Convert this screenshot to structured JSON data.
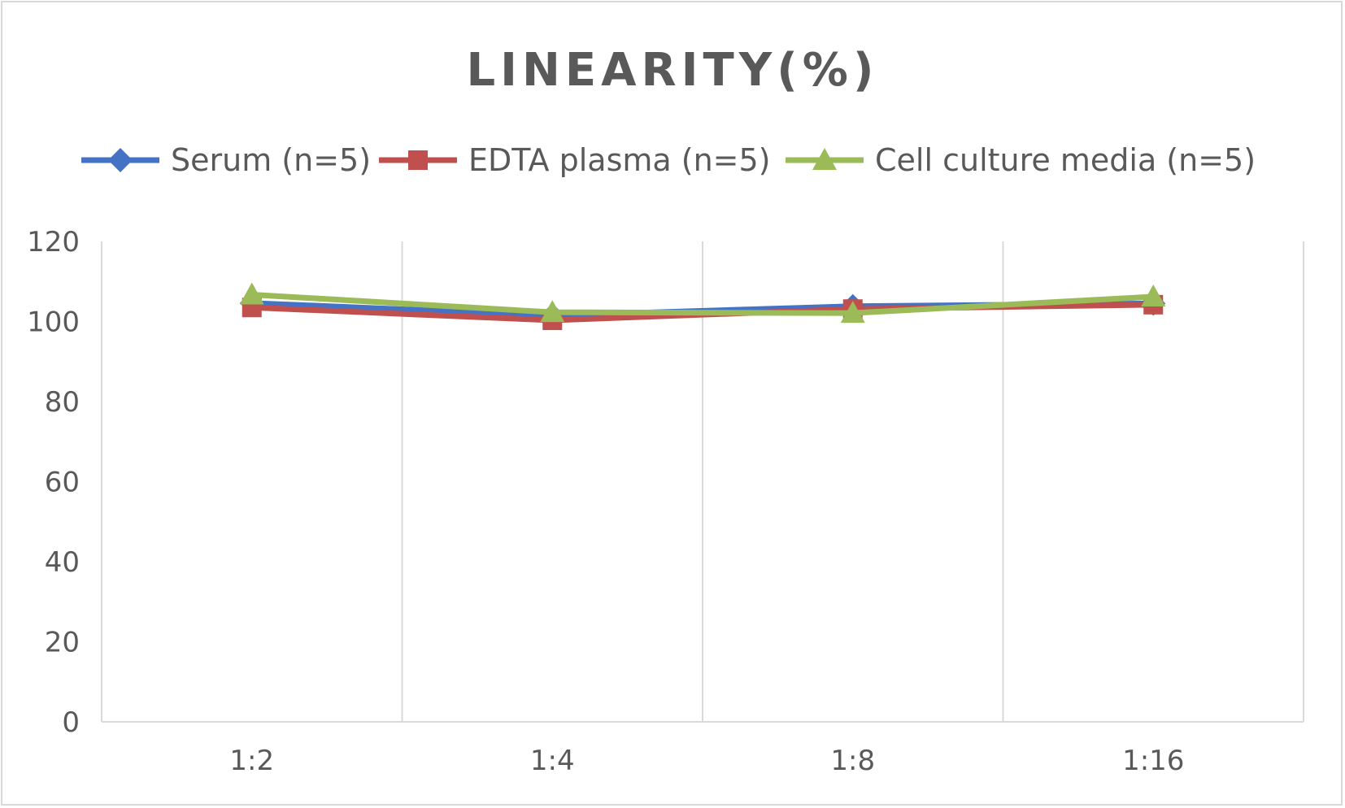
{
  "chart_data": {
    "type": "line",
    "title": "LINEARITY(%)",
    "xlabel": "",
    "ylabel": "",
    "categories": [
      "1:2",
      "1:4",
      "1:8",
      "1:16"
    ],
    "ylim": [
      0,
      120
    ],
    "yticks": [
      0,
      20,
      40,
      60,
      80,
      100,
      120
    ],
    "grid": "vertical",
    "legend_position": "top",
    "series": [
      {
        "name": "Serum (n=5)",
        "values": [
          104.6,
          101.5,
          103.8,
          104.5
        ],
        "color": "#4472c4",
        "marker": "diamond"
      },
      {
        "name": "EDTA plasma (n=5)",
        "values": [
          103.5,
          100.3,
          103.1,
          104.2
        ],
        "color": "#c0504d",
        "marker": "square"
      },
      {
        "name": "Cell culture media (n=5)",
        "values": [
          106.7,
          102.3,
          102.1,
          106.2
        ],
        "color": "#9bbb59",
        "marker": "triangle"
      }
    ]
  }
}
